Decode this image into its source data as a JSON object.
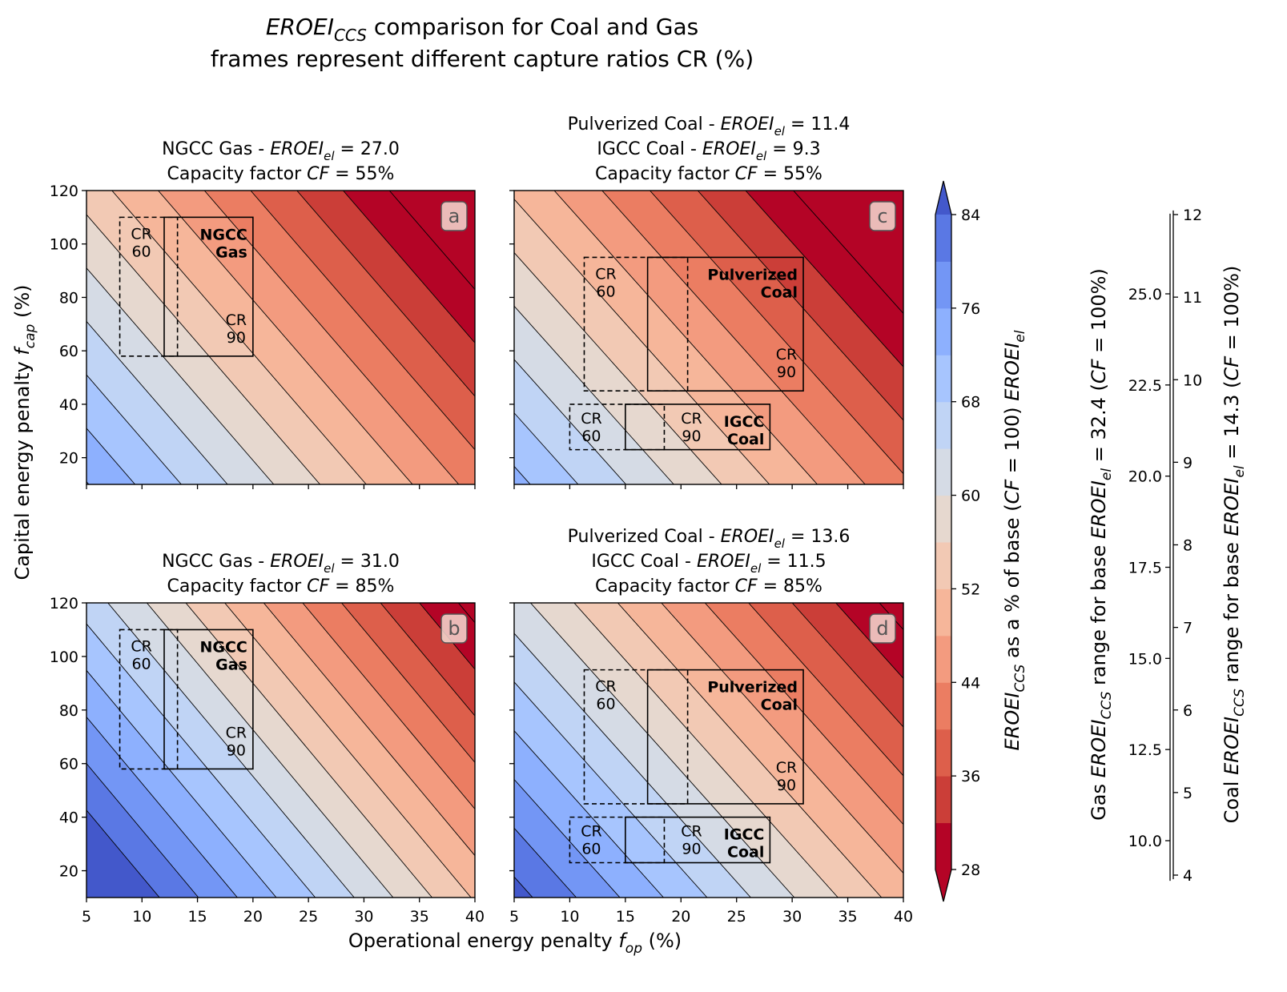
{
  "figure": {
    "title_line1_italic": "EROEI",
    "title_line1_sub": "CCS",
    "title_line1_rest": " comparison for Coal and Gas",
    "title_line2": "frames represent different capture ratios CR (%)"
  },
  "axes": {
    "xlabel_prefix": "Operational energy penalty ",
    "xlabel_var": "f",
    "xlabel_sub": "op",
    "xlabel_suffix": "  (%)",
    "ylabel_prefix": "Capital energy penalty ",
    "ylabel_var": "f",
    "ylabel_sub": "cap",
    "ylabel_suffix": "  (%)",
    "x_ticks": [
      "5",
      "10",
      "15",
      "20",
      "25",
      "30",
      "35",
      "40"
    ],
    "y_ticks": [
      "20",
      "40",
      "60",
      "80",
      "100",
      "120"
    ]
  },
  "panels": [
    {
      "letter": "a",
      "title_lines": [
        {
          "pre": "NGCC Gas - ",
          "var": "EROEI",
          "sub": "el",
          "post": " = 27.0"
        },
        {
          "pre": "Capacity factor ",
          "var": "CF",
          "sub": "",
          "post": " = 55%"
        }
      ],
      "boxes": [
        {
          "name": "NGCC-gas-frame",
          "label": "NGCC\nGas",
          "cr60": "CR\n60",
          "cr90": "CR\n90"
        }
      ]
    },
    {
      "letter": "b",
      "title_lines": [
        {
          "pre": "NGCC Gas - ",
          "var": "EROEI",
          "sub": "el",
          "post": " = 31.0"
        },
        {
          "pre": "Capacity factor ",
          "var": "CF",
          "sub": "",
          "post": " = 85%"
        }
      ],
      "boxes": [
        {
          "name": "NGCC-gas-frame",
          "label": "NGCC\nGas",
          "cr60": "CR\n60",
          "cr90": "CR\n90"
        }
      ]
    },
    {
      "letter": "c",
      "title_lines": [
        {
          "pre": "Pulverized Coal - ",
          "var": "EROEI",
          "sub": "el",
          "post": " = 11.4"
        },
        {
          "pre": "IGCC Coal - ",
          "var": "EROEI",
          "sub": "el",
          "post": " = 9.3"
        },
        {
          "pre": "Capacity factor ",
          "var": "CF",
          "sub": "",
          "post": " = 55%"
        }
      ],
      "boxes": [
        {
          "name": "pulverized-coal-frame",
          "label": "Pulverized\nCoal",
          "cr60": "CR\n60",
          "cr90": "CR\n90"
        },
        {
          "name": "IGCC-coal-frame",
          "label": "IGCC\nCoal",
          "cr60": "CR\n60",
          "cr90": "CR\n90"
        }
      ]
    },
    {
      "letter": "d",
      "title_lines": [
        {
          "pre": "Pulverized Coal - ",
          "var": "EROEI",
          "sub": "el",
          "post": " = 13.6"
        },
        {
          "pre": "IGCC Coal - ",
          "var": "EROEI",
          "sub": "el",
          "post": " = 11.5"
        },
        {
          "pre": "Capacity factor ",
          "var": "CF",
          "sub": "",
          "post": " = 85%"
        }
      ],
      "boxes": [
        {
          "name": "pulverized-coal-frame",
          "label": "Pulverized\nCoal",
          "cr60": "CR\n60",
          "cr90": "CR\n90"
        },
        {
          "name": "IGCC-coal-frame",
          "label": "IGCC\nCoal",
          "cr60": "CR\n60",
          "cr90": "CR\n90"
        }
      ]
    }
  ],
  "colorbar": {
    "ticks": [
      "28",
      "36",
      "44",
      "52",
      "60",
      "68",
      "76",
      "84"
    ],
    "label_var": "EROEI",
    "label_sub": "CCS",
    "label_mid": " as a % of base (",
    "label_cf": "CF",
    "label_cfval": " = 100) ",
    "label_var2": "EROEI",
    "label_sub2": "el"
  },
  "gas_axis": {
    "ticks": [
      "10.0",
      "12.5",
      "15.0",
      "17.5",
      "20.0",
      "22.5",
      "25.0"
    ],
    "label_pre": "Gas ",
    "label_var": "EROEI",
    "label_sub": "CCS",
    "label_mid": " range for base ",
    "label_var2": "EROEI",
    "label_sub2": "el",
    "label_post": " = 32.4 (",
    "label_cf": "CF",
    "label_end": " = 100%)"
  },
  "coal_axis": {
    "ticks": [
      "4",
      "5",
      "6",
      "7",
      "8",
      "9",
      "10",
      "11",
      "12"
    ],
    "label_pre": "Coal ",
    "label_var": "EROEI",
    "label_sub": "CCS",
    "label_mid": " range for base ",
    "label_var2": "EROEI",
    "label_sub2": "el",
    "label_post": " = 14.3 (",
    "label_cf": "CF",
    "label_end": " = 100%)"
  },
  "chart_data": {
    "type": "contour",
    "x_range": [
      5,
      40
    ],
    "y_range": [
      10,
      120
    ],
    "levels": [
      28,
      32,
      36,
      40,
      44,
      48,
      52,
      56,
      60,
      64,
      68,
      72,
      76,
      80,
      84
    ],
    "colormap": "coolwarm_r",
    "level_colors": [
      "#b40426",
      "#cb3e38",
      "#dd5f4b",
      "#eb7d62",
      "#f39b7f",
      "#f6b69a",
      "#f2c9b4",
      "#e6d8cf",
      "#d5dbe5",
      "#c0d4f5",
      "#a7c5fe",
      "#8db0fe",
      "#7396f5",
      "#5a78e4",
      "#4358cb"
    ],
    "panels": [
      {
        "letter": "a",
        "fuel": "NGCC Gas",
        "eroei_el": 27.0,
        "cf": 55,
        "base_eroei": 32.4,
        "frames": [
          {
            "fuel": "NGCC Gas",
            "f_op_cr60": [
              8,
              13.2
            ],
            "f_op_cr90": [
              12,
              20
            ],
            "f_cap": [
              58,
              110
            ]
          }
        ]
      },
      {
        "letter": "b",
        "fuel": "NGCC Gas",
        "eroei_el": 31.0,
        "cf": 85,
        "base_eroei": 32.4,
        "frames": [
          {
            "fuel": "NGCC Gas",
            "f_op_cr60": [
              8,
              13.2
            ],
            "f_op_cr90": [
              12,
              20
            ],
            "f_cap": [
              58,
              110
            ]
          }
        ]
      },
      {
        "letter": "c",
        "fuel": "Coal",
        "eroei_el": [
          11.4,
          9.3
        ],
        "cf": 55,
        "base_eroei": 14.3,
        "frames": [
          {
            "fuel": "Pulverized Coal",
            "f_op_cr60": [
              11.3,
              20.6
            ],
            "f_op_cr90": [
              17,
              31
            ],
            "f_cap": [
              45,
              95
            ]
          },
          {
            "fuel": "IGCC Coal",
            "f_op_cr60": [
              10,
              18.5
            ],
            "f_op_cr90": [
              15,
              28
            ],
            "f_cap": [
              23,
              40
            ]
          }
        ]
      },
      {
        "letter": "d",
        "fuel": "Coal",
        "eroei_el": [
          13.6,
          11.5
        ],
        "cf": 85,
        "base_eroei": 14.3,
        "frames": [
          {
            "fuel": "Pulverized Coal",
            "f_op_cr60": [
              11.3,
              20.6
            ],
            "f_op_cr90": [
              17,
              31
            ],
            "f_cap": [
              45,
              95
            ]
          },
          {
            "fuel": "IGCC Coal",
            "f_op_cr60": [
              10,
              18.5
            ],
            "f_op_cr90": [
              15,
              28
            ],
            "f_cap": [
              23,
              40
            ]
          }
        ]
      }
    ]
  }
}
